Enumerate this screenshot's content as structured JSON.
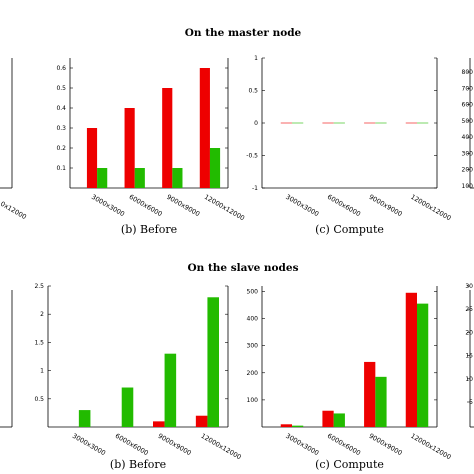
{
  "titles": {
    "master": "On the master node",
    "slave": "On the slave nodes"
  },
  "colors": {
    "series_red": "#ee0000",
    "series_green": "#22bb00"
  },
  "chart_data": [
    {
      "id": "master-before",
      "type": "bar",
      "caption": "(b) Before",
      "categories": [
        "3000x3000",
        "6000x6000",
        "9000x9000",
        "12000x12000"
      ],
      "series": [
        {
          "values": [
            0.3,
            0.4,
            0.5,
            0.6
          ]
        },
        {
          "values": [
            0.1,
            0.1,
            0.1,
            0.2
          ]
        }
      ],
      "ylim": [
        0,
        0.65
      ],
      "yticks": [
        {
          "v": 0.1,
          "label": "0.1"
        },
        {
          "v": 0.2,
          "label": "0.2"
        },
        {
          "v": 0.3,
          "label": "0.3"
        },
        {
          "v": 0.4,
          "label": "0.4"
        },
        {
          "v": 0.5,
          "label": "0.5"
        },
        {
          "v": 0.6,
          "label": "0.6"
        }
      ]
    },
    {
      "id": "master-compute",
      "type": "bar",
      "caption": "(c) Compute",
      "categories": [
        "3000x3000",
        "6000x6000",
        "9000x9000",
        "12000x12000"
      ],
      "series": [
        {
          "values": [
            0,
            0,
            0,
            0
          ]
        },
        {
          "values": [
            0,
            0,
            0,
            0
          ]
        }
      ],
      "ylim": [
        -1,
        1
      ],
      "yticks": [
        {
          "v": -1,
          "label": "-1"
        },
        {
          "v": -0.5,
          "label": "-0.5"
        },
        {
          "v": 0,
          "label": "0"
        },
        {
          "v": 0.5,
          "label": "0.5"
        },
        {
          "v": 1,
          "label": "1"
        }
      ]
    },
    {
      "id": "slave-before",
      "type": "bar",
      "caption": "(b) Before",
      "categories": [
        "3000x3000",
        "6000x6000",
        "9000x9000",
        "12000x12000"
      ],
      "series": [
        {
          "values": [
            0,
            0,
            0.1,
            0.2
          ]
        },
        {
          "values": [
            0.3,
            0.7,
            1.3,
            2.3
          ]
        }
      ],
      "ylim": [
        0,
        2.5
      ],
      "yticks": [
        {
          "v": 0.5,
          "label": "0.5"
        },
        {
          "v": 1,
          "label": "1"
        },
        {
          "v": 1.5,
          "label": "1.5"
        },
        {
          "v": 2,
          "label": "2"
        },
        {
          "v": 2.5,
          "label": "2.5"
        }
      ]
    },
    {
      "id": "slave-compute",
      "type": "bar",
      "caption": "(c) Compute",
      "categories": [
        "3000x3000",
        "6000x6000",
        "9000x9000",
        "12000x12000"
      ],
      "series": [
        {
          "values": [
            10,
            60,
            240,
            495
          ]
        },
        {
          "values": [
            5,
            50,
            185,
            455
          ]
        }
      ],
      "ylim": [
        0,
        520
      ],
      "yticks": [
        {
          "v": 100,
          "label": "100"
        },
        {
          "v": 200,
          "label": "200"
        },
        {
          "v": 300,
          "label": "300"
        },
        {
          "v": 400,
          "label": "400"
        },
        {
          "v": 500,
          "label": "500"
        }
      ]
    }
  ],
  "fragments": {
    "left_top_cat_label": "0x12000",
    "right_top_ticks": [
      "800",
      "700",
      "600",
      "500",
      "400",
      "300",
      "200",
      "100"
    ],
    "right_bottom_ticks": [
      "30",
      "25",
      "20",
      "15",
      "10",
      "5"
    ]
  }
}
